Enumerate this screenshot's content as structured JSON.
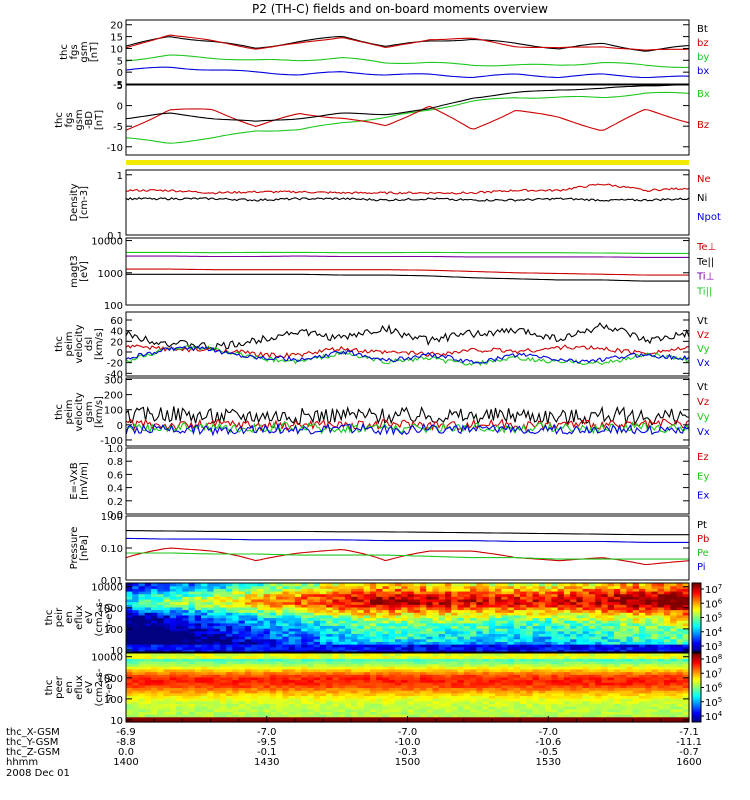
{
  "title": "P2 (TH-C) fields and on-board moments overview",
  "colors": {
    "black": "#000000",
    "red": "#cc0000",
    "green": "#1ec81e",
    "blue": "#0000dd",
    "yellow": "#f2ea00",
    "purple": "#7a00a0"
  },
  "chart_data": [
    {
      "type": "line",
      "ylabel": [
        "thc",
        "fgs",
        "gsm",
        "[nT]"
      ],
      "ylim": [
        -5,
        22
      ],
      "scale": "linear",
      "yticks": [
        -5,
        0,
        5,
        10,
        15,
        20
      ],
      "series": [
        {
          "name": "Bt",
          "color": "black",
          "values": [
            11,
            15,
            13,
            10,
            13,
            15,
            11,
            13,
            14,
            12,
            10,
            12,
            9,
            11
          ]
        },
        {
          "name": "bz",
          "color": "red",
          "values": [
            10,
            16,
            13,
            10,
            12,
            15,
            10,
            14,
            14,
            11,
            10,
            11,
            9,
            10
          ]
        },
        {
          "name": "by",
          "color": "green",
          "values": [
            5,
            7,
            6,
            5,
            5,
            6,
            4,
            4,
            3,
            3,
            3,
            4,
            3,
            2
          ]
        },
        {
          "name": "bx",
          "color": "blue",
          "values": [
            1,
            2,
            1,
            0,
            -1,
            0,
            -1,
            -1,
            -2,
            -1,
            -2,
            -1,
            -2,
            -2
          ]
        }
      ]
    },
    {
      "type": "line",
      "ylabel": [
        "thc",
        "fgs",
        "gsm",
        "-BD",
        "[nT]"
      ],
      "ylim": [
        -12,
        5
      ],
      "scale": "linear",
      "yticks": [
        -10,
        -5,
        0,
        5
      ],
      "series": [
        {
          "name": "Bx",
          "color": "green",
          "values": [
            -8,
            -9,
            -8,
            -6,
            -6,
            -4,
            -3,
            -1,
            1,
            2,
            2,
            2,
            3,
            3
          ]
        },
        {
          "name": "Bz",
          "color": "red",
          "values": [
            -6,
            -1,
            -1,
            -5,
            -2,
            -3,
            -5,
            0,
            -6,
            -1,
            -3,
            -6,
            -1,
            -4
          ]
        },
        {
          "name": "",
          "color": "black",
          "values": [
            -3,
            -2,
            -3,
            -4,
            -3,
            -2,
            -2,
            -1,
            2,
            3,
            4,
            4,
            5,
            5
          ]
        }
      ]
    },
    {
      "type": "line",
      "ylabel": [
        "Density",
        "[cm-3]"
      ],
      "ylim": [
        0.1,
        1.2
      ],
      "scale": "log",
      "yticks": [
        0.1,
        1.0
      ],
      "series": [
        {
          "name": "Ne",
          "color": "red",
          "values": [
            0.55,
            0.55,
            0.5,
            0.52,
            0.52,
            0.5,
            0.5,
            0.5,
            0.5,
            0.55,
            0.55,
            0.7,
            0.55,
            0.6
          ]
        },
        {
          "name": "Ni",
          "color": "black",
          "values": [
            0.4,
            0.4,
            0.4,
            0.38,
            0.4,
            0.4,
            0.38,
            0.4,
            0.38,
            0.38,
            0.4,
            0.38,
            0.38,
            0.4
          ]
        },
        {
          "name": "Npot",
          "color": "blue",
          "values": []
        }
      ]
    },
    {
      "type": "line",
      "ylabel": [
        "magt3",
        "[eV]"
      ],
      "ylim": [
        100,
        12000
      ],
      "scale": "log",
      "yticks": [
        100,
        1000,
        10000
      ],
      "series": [
        {
          "name": "Te⊥",
          "color": "red",
          "values": [
            1300,
            1300,
            1250,
            1250,
            1250,
            1250,
            1250,
            1200,
            1100,
            1000,
            950,
            900,
            850,
            850
          ]
        },
        {
          "name": "Te||",
          "color": "black",
          "values": [
            900,
            900,
            900,
            900,
            900,
            850,
            850,
            800,
            700,
            650,
            600,
            600,
            550,
            550
          ]
        },
        {
          "name": "Ti⊥",
          "color": "purple",
          "values": [
            3300,
            3300,
            3200,
            3200,
            3300,
            3200,
            3200,
            3200,
            3100,
            3100,
            3100,
            3100,
            3000,
            3000
          ]
        },
        {
          "name": "Ti||",
          "color": "green",
          "values": [
            4300,
            4300,
            4200,
            4300,
            4300,
            4200,
            4200,
            4300,
            4200,
            4200,
            4200,
            4100,
            4000,
            4000
          ]
        }
      ]
    },
    {
      "type": "line",
      "ylabel": [
        "thc",
        "peim",
        "velocity",
        "dsl",
        "[km/s]"
      ],
      "ylim": [
        -45,
        75
      ],
      "scale": "linear",
      "yticks": [
        -40,
        -20,
        0,
        20,
        40,
        60
      ],
      "series": [
        {
          "name": "Vt",
          "color": "black",
          "values": [
            35,
            15,
            10,
            20,
            40,
            25,
            45,
            20,
            35,
            40,
            25,
            50,
            20,
            35
          ]
        },
        {
          "name": "Vz",
          "color": "red",
          "values": [
            10,
            5,
            5,
            -5,
            -5,
            5,
            0,
            -5,
            5,
            0,
            10,
            5,
            0,
            5
          ]
        },
        {
          "name": "Vy",
          "color": "green",
          "values": [
            -20,
            10,
            5,
            -10,
            -20,
            0,
            -20,
            -10,
            -25,
            -10,
            -20,
            -20,
            -5,
            -15
          ]
        },
        {
          "name": "Vx",
          "color": "blue",
          "values": [
            -10,
            5,
            5,
            -10,
            -15,
            0,
            -15,
            -5,
            -20,
            -5,
            -15,
            -15,
            -5,
            -10
          ]
        }
      ]
    },
    {
      "type": "line",
      "ylabel": [
        "thc",
        "peim",
        "velocity",
        "gsm",
        "[km/s]"
      ],
      "ylim": [
        -140,
        310
      ],
      "scale": "linear",
      "yticks": [
        -100,
        0,
        100,
        200,
        300
      ],
      "series": [
        {
          "name": "Vt",
          "color": "black",
          "values": [
            60,
            70,
            60,
            55,
            65,
            60,
            65,
            55,
            60,
            60,
            55,
            60,
            55,
            60
          ]
        },
        {
          "name": "Vz",
          "color": "red",
          "values": [
            0,
            0,
            0,
            0,
            0,
            0,
            0,
            0,
            0,
            0,
            0,
            0,
            0,
            0
          ]
        },
        {
          "name": "Vy",
          "color": "green",
          "values": [
            -20,
            -20,
            -20,
            -20,
            -20,
            -20,
            -20,
            -20,
            -20,
            -20,
            -20,
            -20,
            -20,
            -20
          ]
        },
        {
          "name": "Vx",
          "color": "blue",
          "values": [
            -30,
            -30,
            -30,
            -30,
            -30,
            -30,
            -30,
            -30,
            -30,
            -30,
            -30,
            -30,
            -30,
            -30
          ]
        }
      ]
    },
    {
      "type": "line",
      "ylabel": [
        "E=-VxB",
        "[mV/m]"
      ],
      "ylim": [
        0.0,
        1.0
      ],
      "scale": "linear",
      "yticks": [
        0.0,
        0.2,
        0.4,
        0.6,
        0.8,
        1.0
      ],
      "yticklabels": [
        "0.0",
        "0.2",
        "0.4",
        "0.6",
        "0.8",
        "1.0"
      ],
      "series": [
        {
          "name": "Ez",
          "color": "red",
          "values": []
        },
        {
          "name": "Ey",
          "color": "green",
          "values": []
        },
        {
          "name": "Ex",
          "color": "blue",
          "values": []
        }
      ]
    },
    {
      "type": "line",
      "ylabel": [
        "Pressure",
        "[nPa]"
      ],
      "ylim": [
        0.01,
        1.0
      ],
      "scale": "log",
      "yticks": [
        0.01,
        0.1,
        1.0
      ],
      "yticklabels": [
        "0.01",
        "0.10",
        "1.00"
      ],
      "series": [
        {
          "name": "Pt",
          "color": "black",
          "values": [
            0.35,
            0.34,
            0.33,
            0.33,
            0.33,
            0.32,
            0.32,
            0.31,
            0.3,
            0.29,
            0.28,
            0.27,
            0.26,
            0.26
          ]
        },
        {
          "name": "Pb",
          "color": "red",
          "values": [
            0.05,
            0.1,
            0.08,
            0.04,
            0.07,
            0.09,
            0.04,
            0.08,
            0.08,
            0.05,
            0.04,
            0.05,
            0.03,
            0.04
          ]
        },
        {
          "name": "Pe",
          "color": "green",
          "values": [
            0.07,
            0.07,
            0.065,
            0.065,
            0.06,
            0.06,
            0.06,
            0.055,
            0.05,
            0.05,
            0.045,
            0.045,
            0.045,
            0.045
          ]
        },
        {
          "name": "Pi",
          "color": "blue",
          "values": [
            0.2,
            0.19,
            0.19,
            0.18,
            0.18,
            0.18,
            0.17,
            0.17,
            0.17,
            0.16,
            0.16,
            0.16,
            0.15,
            0.15
          ]
        }
      ]
    },
    {
      "type": "heatmap",
      "ylabel": [
        "thc",
        "peir",
        "en",
        "eflux",
        "eV",
        "(cm2-s-",
        "sr-eV)"
      ],
      "ylim": [
        8,
        15000
      ],
      "scale": "log",
      "yticks": [
        10,
        100,
        1000,
        10000
      ],
      "colorbar": {
        "ticks": [
          "10",
          "10",
          "10",
          "10",
          "10"
        ],
        "exponents": [
          "3",
          "4",
          "5",
          "6",
          "7"
        ]
      },
      "profile": [
        {
          "at": 0.0,
          "level": 0.05
        },
        {
          "at": 0.25,
          "level": 0.4
        },
        {
          "at": 0.45,
          "level": 0.62
        },
        {
          "at": 0.75,
          "level": 0.55
        },
        {
          "at": 1.0,
          "level": 0.7
        }
      ]
    },
    {
      "type": "heatmap",
      "ylabel": [
        "thc",
        "peer",
        "en",
        "eflux",
        "eV",
        "(cm2-s-",
        "sr-eV)"
      ],
      "ylim": [
        8,
        15000
      ],
      "scale": "log",
      "yticks": [
        10,
        100,
        1000,
        10000
      ],
      "colorbar": {
        "ticks": [
          "10",
          "10",
          "10",
          "10",
          "10"
        ],
        "exponents": [
          "4",
          "5",
          "6",
          "7",
          "8"
        ]
      },
      "profile": [
        {
          "at": 0.0,
          "level": 0.95
        },
        {
          "at": 0.15,
          "level": 0.45
        },
        {
          "at": 0.35,
          "level": 0.6
        },
        {
          "at": 0.6,
          "level": 0.8
        },
        {
          "at": 0.85,
          "level": 0.62
        },
        {
          "at": 1.0,
          "level": 0.7
        }
      ]
    }
  ],
  "xaxis": {
    "rows": [
      {
        "label": "thc_X-GSM",
        "values": [
          "-6.9",
          "-7.0",
          "-7.0",
          "-7.0",
          "-7.1"
        ]
      },
      {
        "label": "thc_Y-GSM",
        "values": [
          "-8.8",
          "-9.5",
          "-10.0",
          "-10.6",
          "-11.1"
        ]
      },
      {
        "label": "thc_Z-GSM",
        "values": [
          "0.0",
          "-0.1",
          "-0.3",
          "-0.5",
          "-0.7"
        ]
      },
      {
        "label": "hhmm",
        "values": [
          "1400",
          "1430",
          "1500",
          "1530",
          "1600"
        ]
      }
    ],
    "date": "2008 Dec 01"
  }
}
